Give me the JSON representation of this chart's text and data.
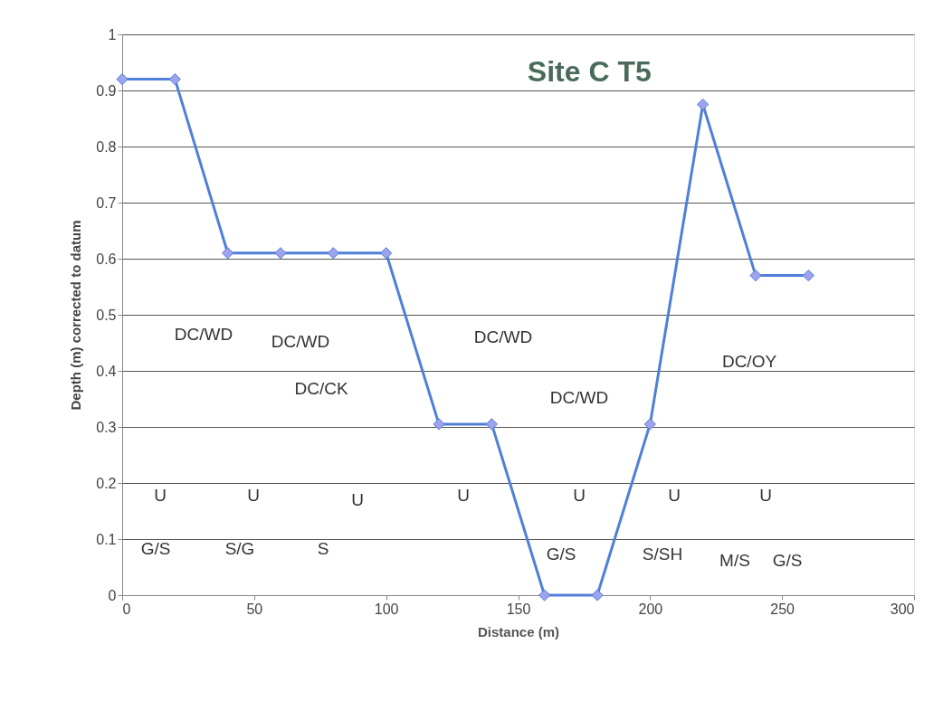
{
  "chart_data": {
    "type": "line",
    "title": "Site C T5",
    "xlabel": "Distance (m)",
    "ylabel": "Depth (m) corrected to datum",
    "x": [
      0,
      20,
      40,
      60,
      80,
      100,
      120,
      140,
      160,
      180,
      200,
      220,
      240,
      260
    ],
    "series": [
      {
        "color": "#4f7fd8",
        "values": [
          0.92,
          0.92,
          0.61,
          0.61,
          0.61,
          0.61,
          0.305,
          0.305,
          0,
          0,
          0.305,
          0.875,
          0.57,
          0.57
        ]
      }
    ],
    "xlim": [
      0,
      300
    ],
    "xticks": [
      0,
      50,
      100,
      150,
      200,
      250,
      300
    ],
    "ylim": [
      0,
      1
    ],
    "yticks": [
      0,
      0.1,
      0.2,
      0.3,
      0.4,
      0.5,
      0.6,
      0.7,
      0.8,
      0.9,
      1
    ],
    "grid": "y",
    "marker": "diamond",
    "line_style": "solid",
    "annotations": [
      "DC/WD",
      "DC/WD",
      "DC/CK",
      "DC/WD",
      "DC/WD",
      "DC/OY",
      "U",
      "U",
      "U",
      "U",
      "U",
      "U",
      "U",
      "G/S",
      "S/G",
      "S",
      "G/S",
      "S/SH",
      "M/S",
      "G/S"
    ]
  }
}
